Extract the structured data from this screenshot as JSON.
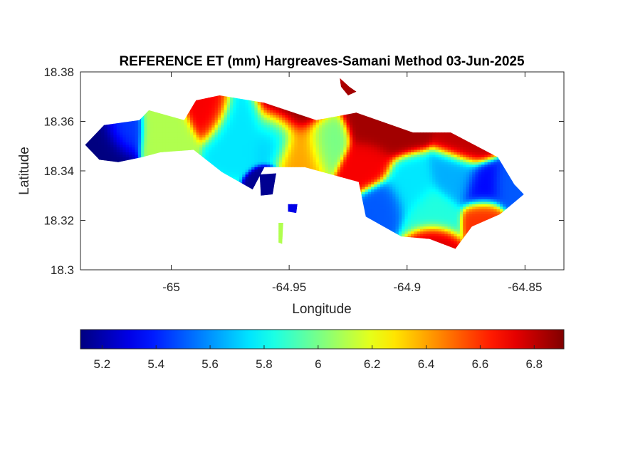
{
  "chart_data": {
    "type": "heatmap",
    "title": "REFERENCE ET (mm) Hargreaves-Samani Method  03-Jun-2025",
    "xlabel": "Longitude",
    "ylabel": "Latitude",
    "xlim": [
      -65.0385,
      -64.8335
    ],
    "ylim": [
      18.3,
      18.38
    ],
    "xticks": [
      -65,
      -64.95,
      -64.9,
      -64.85
    ],
    "xtick_labels": [
      "-65",
      "-64.95",
      "-64.9",
      "-64.85"
    ],
    "yticks": [
      18.3,
      18.32,
      18.34,
      18.36,
      18.38
    ],
    "ytick_labels": [
      "18.3",
      "18.32",
      "18.34",
      "18.36",
      "18.38"
    ],
    "grid": false,
    "colormap": "jet",
    "clim": [
      5.12,
      6.91
    ],
    "colorbar": {
      "placement": "bottom",
      "ticks": [
        5.2,
        5.4,
        5.6,
        5.8,
        6,
        6.2,
        6.4,
        6.6,
        6.8
      ],
      "tick_labels": [
        "5.2",
        "5.4",
        "5.6",
        "5.8",
        "6",
        "6.2",
        "6.4",
        "6.6",
        "6.8"
      ]
    },
    "island_outline": [
      [
        -65.0365,
        18.3505
      ],
      [
        -65.0285,
        18.3585
      ],
      [
        -65.0135,
        18.3605
      ],
      [
        -65.0095,
        18.3645
      ],
      [
        -64.9945,
        18.3605
      ],
      [
        -64.9895,
        18.3685
      ],
      [
        -64.9795,
        18.3705
      ],
      [
        -64.9605,
        18.3675
      ],
      [
        -64.9385,
        18.3605
      ],
      [
        -64.9215,
        18.3635
      ],
      [
        -64.8975,
        18.3555
      ],
      [
        -64.8815,
        18.3555
      ],
      [
        -64.8615,
        18.3455
      ],
      [
        -64.8545,
        18.3345
      ],
      [
        -64.8505,
        18.3305
      ],
      [
        -64.8605,
        18.3225
      ],
      [
        -64.8725,
        18.3175
      ],
      [
        -64.8795,
        18.3085
      ],
      [
        -64.8905,
        18.3125
      ],
      [
        -64.9025,
        18.3135
      ],
      [
        -64.9175,
        18.3215
      ],
      [
        -64.9205,
        18.3355
      ],
      [
        -64.9435,
        18.3415
      ],
      [
        -64.9605,
        18.3415
      ],
      [
        -64.9655,
        18.3325
      ],
      [
        -64.9785,
        18.3395
      ],
      [
        -64.9905,
        18.3485
      ],
      [
        -65.0045,
        18.3475
      ],
      [
        -65.0125,
        18.3455
      ],
      [
        -65.0225,
        18.3435
      ],
      [
        -65.0305,
        18.3445
      ]
    ],
    "islets": [
      [
        [
          -64.9285,
          18.3775
        ],
        [
          -64.9245,
          18.374
        ],
        [
          -64.9215,
          18.372
        ],
        [
          -64.925,
          18.3705
        ],
        [
          -64.928,
          18.374
        ]
      ],
      [
        [
          -64.9625,
          18.3385
        ],
        [
          -64.9555,
          18.339
        ],
        [
          -64.957,
          18.3305
        ],
        [
          -64.962,
          18.33
        ]
      ],
      [
        [
          -64.9505,
          18.3265
        ],
        [
          -64.9465,
          18.3265
        ],
        [
          -64.947,
          18.323
        ],
        [
          -64.9505,
          18.3235
        ]
      ],
      [
        [
          -64.9545,
          18.319
        ],
        [
          -64.9525,
          18.319
        ],
        [
          -64.953,
          18.3105
        ],
        [
          -64.9545,
          18.311
        ]
      ]
    ],
    "value_centers": [
      {
        "lon": -65.03,
        "lat": 18.352,
        "value": 5.12,
        "spread": 0.0065
      },
      {
        "lon": -65.022,
        "lat": 18.356,
        "value": 5.45,
        "spread": 0.005
      },
      {
        "lon": -65.002,
        "lat": 18.3555,
        "value": 6.1,
        "spread": 0.006
      },
      {
        "lon": -64.985,
        "lat": 18.364,
        "value": 6.7,
        "spread": 0.0055
      },
      {
        "lon": -64.972,
        "lat": 18.3575,
        "value": 5.75,
        "spread": 0.007
      },
      {
        "lon": -64.956,
        "lat": 18.355,
        "value": 5.7,
        "spread": 0.006
      },
      {
        "lon": -64.96,
        "lat": 18.3335,
        "value": 5.15,
        "spread": 0.0035
      },
      {
        "lon": -64.95,
        "lat": 18.364,
        "value": 6.9,
        "spread": 0.008
      },
      {
        "lon": -64.945,
        "lat": 18.35,
        "value": 6.4,
        "spread": 0.006
      },
      {
        "lon": -64.936,
        "lat": 18.352,
        "value": 6.0,
        "spread": 0.0055
      },
      {
        "lon": -64.91,
        "lat": 18.36,
        "value": 6.85,
        "spread": 0.0085
      },
      {
        "lon": -64.917,
        "lat": 18.342,
        "value": 6.7,
        "spread": 0.0055
      },
      {
        "lon": -64.9,
        "lat": 18.333,
        "value": 5.75,
        "spread": 0.0065
      },
      {
        "lon": -64.91,
        "lat": 18.327,
        "value": 5.5,
        "spread": 0.005
      },
      {
        "lon": -64.89,
        "lat": 18.323,
        "value": 5.85,
        "spread": 0.006
      },
      {
        "lon": -64.88,
        "lat": 18.337,
        "value": 5.65,
        "spread": 0.006
      },
      {
        "lon": -64.868,
        "lat": 18.333,
        "value": 5.35,
        "spread": 0.0055
      },
      {
        "lon": -64.858,
        "lat": 18.333,
        "value": 5.5,
        "spread": 0.005
      },
      {
        "lon": -64.875,
        "lat": 18.352,
        "value": 6.8,
        "spread": 0.006
      },
      {
        "lon": -64.89,
        "lat": 18.311,
        "value": 6.75,
        "spread": 0.0045
      },
      {
        "lon": -64.868,
        "lat": 18.321,
        "value": 6.6,
        "spread": 0.0045
      },
      {
        "lon": -64.946,
        "lat": 18.3245,
        "value": 5.3,
        "spread": 0.002
      },
      {
        "lon": -64.9535,
        "lat": 18.315,
        "value": 6.1,
        "spread": 0.0025
      }
    ]
  }
}
